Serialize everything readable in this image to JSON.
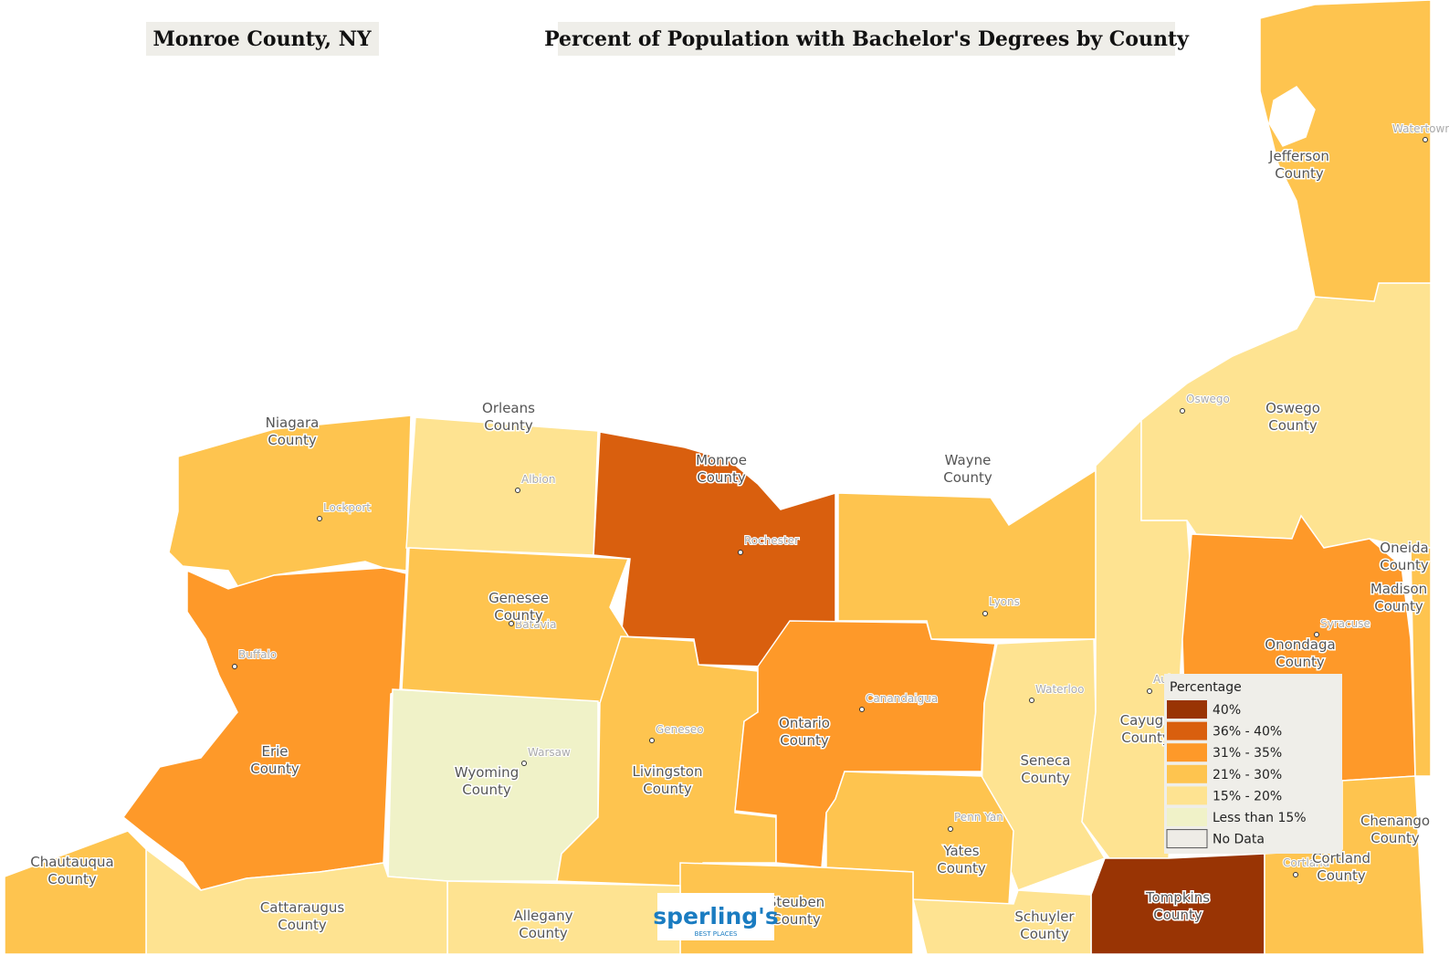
{
  "header": {
    "location": "Monroe County, NY",
    "title": "Percent of Population with Bachelor's Degrees by County"
  },
  "counties": [
    {
      "lines": [
        "Niagara",
        "County"
      ]
    },
    {
      "lines": [
        "Orleans",
        "County"
      ]
    },
    {
      "lines": [
        "Monroe",
        "County"
      ]
    },
    {
      "lines": [
        "Wayne",
        "County"
      ]
    },
    {
      "lines": [
        "Genesee",
        "County"
      ]
    },
    {
      "lines": [
        "Erie",
        "County"
      ]
    },
    {
      "lines": [
        "Wyoming",
        "County"
      ]
    },
    {
      "lines": [
        "Livingston",
        "County"
      ]
    },
    {
      "lines": [
        "Ontario",
        "County"
      ]
    },
    {
      "lines": [
        "Seneca",
        "County"
      ]
    },
    {
      "lines": [
        "Cayuga",
        "County"
      ]
    },
    {
      "lines": [
        "Oswego",
        "County"
      ]
    },
    {
      "lines": [
        "Jefferson",
        "County"
      ]
    },
    {
      "lines": [
        "Oneida",
        "County"
      ]
    },
    {
      "lines": [
        "Madison",
        "County"
      ]
    },
    {
      "lines": [
        "Onondaga",
        "County"
      ]
    },
    {
      "lines": [
        "Chautauqua",
        "County"
      ]
    },
    {
      "lines": [
        "Cattaraugus",
        "County"
      ]
    },
    {
      "lines": [
        "Allegany",
        "County"
      ]
    },
    {
      "lines": [
        "Steuben",
        "County"
      ]
    },
    {
      "lines": [
        "Yates",
        "County"
      ]
    },
    {
      "lines": [
        "Schuyler",
        "County"
      ]
    },
    {
      "lines": [
        "Tompkins",
        "County"
      ]
    },
    {
      "lines": [
        "Cortland",
        "County"
      ]
    },
    {
      "lines": [
        "Chenango",
        "County"
      ]
    }
  ],
  "cities": [
    "Watertown",
    "Oswego",
    "Lockport",
    "Albion",
    "Rochester",
    "Lyons",
    "Buffalo",
    "Batavia",
    "Syracuse",
    "Auburn",
    "Waterloo",
    "Canandaigua",
    "Geneseo",
    "Warsaw",
    "Penn Yan",
    "Cortland"
  ],
  "legend": {
    "title": "Percentage",
    "items": [
      {
        "label": "40%",
        "color": "#993404"
      },
      {
        "label": "36% - 40%",
        "color": "#d95f0e"
      },
      {
        "label": "31% - 35%",
        "color": "#fe9929"
      },
      {
        "label": "21% - 30%",
        "color": "#fec44f"
      },
      {
        "label": "15% - 20%",
        "color": "#fee391"
      },
      {
        "label": "Less than 15%",
        "color": "#f0f2c8"
      },
      {
        "label": "No Data",
        "color": "#eeece6"
      }
    ]
  },
  "logo": {
    "text": "sperling's",
    "subtext": "BEST PLACES"
  }
}
